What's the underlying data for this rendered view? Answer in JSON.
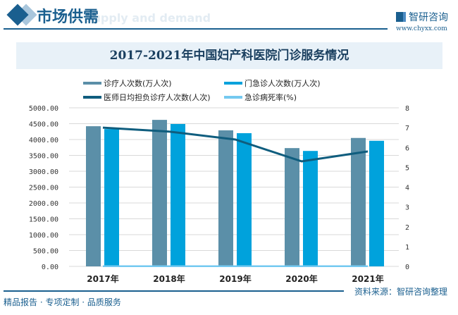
{
  "header": {
    "title": "市场供需",
    "subtitle": "Supply and demand",
    "logo": "智研咨询",
    "url": "www.chyxx.com"
  },
  "footer": {
    "source": "资料来源：智研咨询整理",
    "slogan": "精品报告 · 专项定制 · 品质服务"
  },
  "chart_data": {
    "type": "bar",
    "title": "2017-2021年中国妇产科医院门诊服务情况",
    "categories": [
      "2017年",
      "2018年",
      "2019年",
      "2020年",
      "2021年"
    ],
    "y_left": {
      "range": [
        0,
        5000
      ],
      "ticks": [
        "0.00",
        "500.00",
        "1000.00",
        "1500.00",
        "2000.00",
        "2500.00",
        "3000.00",
        "3500.00",
        "4000.00",
        "4500.00",
        "5000.00"
      ]
    },
    "y_right": {
      "range": [
        0,
        8
      ],
      "ticks": [
        "0",
        "1",
        "2",
        "3",
        "4",
        "5",
        "6",
        "7",
        "8"
      ]
    },
    "grid": true,
    "legend_position": "top",
    "series": [
      {
        "name": "诊疗人次数(万人次)",
        "type": "bar",
        "axis": "left",
        "color": "#5b8fa8",
        "values": [
          4420,
          4620,
          4290,
          3730,
          4050
        ]
      },
      {
        "name": "门急诊人次数(万人次)",
        "type": "bar",
        "axis": "left",
        "color": "#00a2dc",
        "values": [
          4330,
          4490,
          4200,
          3640,
          3960
        ]
      },
      {
        "name": "医师日均担负诊疗人次数(人次)",
        "type": "line",
        "axis": "right",
        "color": "#0f5d7e",
        "values": [
          7.0,
          6.8,
          6.4,
          5.3,
          5.8
        ]
      },
      {
        "name": "急诊病死率(%)",
        "type": "line",
        "axis": "right",
        "color": "#74c9f0",
        "values": [
          0.01,
          0.01,
          0.01,
          0.01,
          0.01
        ]
      }
    ]
  }
}
